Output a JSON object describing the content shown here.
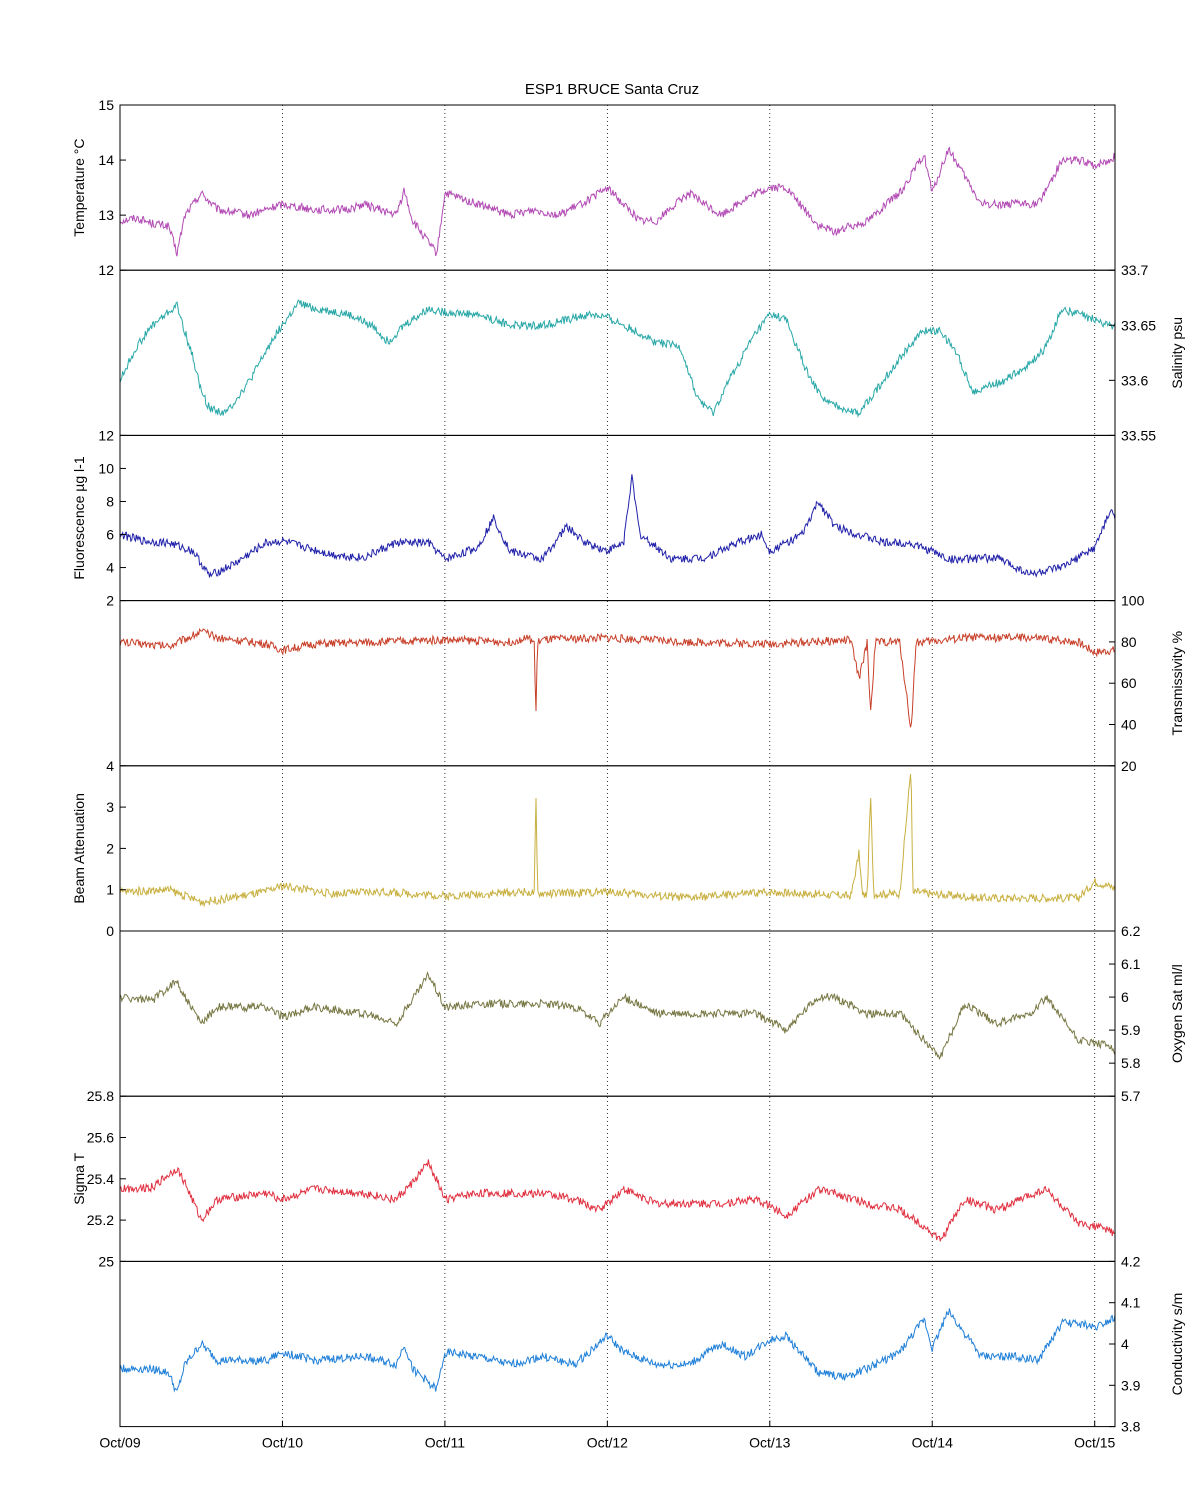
{
  "chart_data": {
    "type": "line",
    "title": "ESP1 BRUCE Santa Cruz",
    "x_ticks": [
      "Oct/09",
      "Oct/10",
      "Oct/11",
      "Oct/12",
      "Oct/13",
      "Oct/14",
      "Oct/15"
    ],
    "xlim": [
      "Oct/09",
      "Oct/15 03:00"
    ],
    "grid": "vertical dotted",
    "panels": [
      {
        "ylabel": "Temperature °C",
        "axis_side": "left",
        "ylim": [
          12,
          15
        ],
        "yticks": [
          "12",
          "13",
          "14",
          "15"
        ],
        "color": "#b24bb4",
        "series": {
          "x_days": [
            0.0,
            0.1,
            0.2,
            0.3,
            0.35,
            0.4,
            0.5,
            0.6,
            0.8,
            1.0,
            1.2,
            1.4,
            1.5,
            1.7,
            1.75,
            1.8,
            1.95,
            2.0,
            2.2,
            2.4,
            2.55,
            2.7,
            2.9,
            3.0,
            3.1,
            3.2,
            3.3,
            3.5,
            3.7,
            3.85,
            4.0,
            4.1,
            4.3,
            4.4,
            4.6,
            4.8,
            4.95,
            5.0,
            5.1,
            5.3,
            5.5,
            5.65,
            5.8,
            5.9,
            6.0,
            6.1,
            6.2
          ],
          "values": [
            12.9,
            12.95,
            12.85,
            12.8,
            12.3,
            13.0,
            13.4,
            13.1,
            13.0,
            13.2,
            13.1,
            13.1,
            13.2,
            13.0,
            13.45,
            12.9,
            12.3,
            13.4,
            13.2,
            13.0,
            13.1,
            13.0,
            13.3,
            13.5,
            13.2,
            12.9,
            12.9,
            13.4,
            13.0,
            13.3,
            13.5,
            13.5,
            12.8,
            12.7,
            12.9,
            13.4,
            14.1,
            13.4,
            14.2,
            13.2,
            13.2,
            13.2,
            14.0,
            14.0,
            13.9,
            14.0,
            14.3
          ]
        }
      },
      {
        "ylabel": "Salinity psu",
        "axis_side": "right",
        "ylim": [
          33.55,
          33.7
        ],
        "yticks": [
          "33.55",
          "33.6",
          "33.65",
          "33.7"
        ],
        "color": "#2aa8a8",
        "series": {
          "x_days": [
            0.0,
            0.1,
            0.2,
            0.35,
            0.45,
            0.5,
            0.55,
            0.65,
            0.8,
            0.95,
            1.1,
            1.2,
            1.4,
            1.55,
            1.65,
            1.75,
            1.9,
            2.0,
            2.2,
            2.4,
            2.6,
            2.75,
            2.9,
            3.0,
            3.1,
            3.3,
            3.45,
            3.55,
            3.65,
            3.75,
            3.9,
            4.0,
            4.1,
            4.25,
            4.35,
            4.55,
            4.7,
            4.85,
            4.95,
            5.05,
            5.15,
            5.25,
            5.45,
            5.6,
            5.7,
            5.8,
            6.0,
            6.1,
            6.2
          ],
          "values": [
            33.6,
            33.63,
            33.65,
            33.668,
            33.62,
            33.59,
            33.575,
            33.57,
            33.6,
            33.64,
            33.67,
            33.665,
            33.66,
            33.65,
            33.635,
            33.65,
            33.665,
            33.662,
            33.66,
            33.65,
            33.65,
            33.655,
            33.66,
            33.657,
            33.65,
            33.635,
            33.63,
            33.585,
            33.57,
            33.6,
            33.64,
            33.66,
            33.655,
            33.6,
            33.58,
            33.57,
            33.6,
            33.63,
            33.645,
            33.645,
            33.625,
            33.59,
            33.6,
            33.615,
            33.63,
            33.665,
            33.655,
            33.65,
            33.65
          ]
        }
      },
      {
        "ylabel": "Fluorescence µg l-1",
        "axis_side": "left",
        "ylim": [
          2,
          12
        ],
        "yticks": [
          "2",
          "4",
          "6",
          "8",
          "10",
          "12"
        ],
        "color": "#2222aa",
        "series": {
          "x_days": [
            0.0,
            0.15,
            0.3,
            0.45,
            0.55,
            0.7,
            0.9,
            1.0,
            1.3,
            1.5,
            1.7,
            1.9,
            2.0,
            2.2,
            2.3,
            2.4,
            2.6,
            2.75,
            2.85,
            3.0,
            3.1,
            3.15,
            3.2,
            3.4,
            3.6,
            3.8,
            3.95,
            4.0,
            4.2,
            4.3,
            4.4,
            4.55,
            4.7,
            4.85,
            5.0,
            5.1,
            5.2,
            5.4,
            5.6,
            5.8,
            6.0,
            6.1,
            6.2
          ],
          "values": [
            6.0,
            5.6,
            5.5,
            5.0,
            3.5,
            4.2,
            5.5,
            5.6,
            4.8,
            4.6,
            5.5,
            5.5,
            4.5,
            5.2,
            7.0,
            5.0,
            4.5,
            6.5,
            5.6,
            5.0,
            5.5,
            9.5,
            6.0,
            4.5,
            4.6,
            5.5,
            6.0,
            5.0,
            6.0,
            8.0,
            6.5,
            6.0,
            5.5,
            5.5,
            5.0,
            4.5,
            4.5,
            4.6,
            3.6,
            4.0,
            5.2,
            7.5,
            5.0
          ]
        }
      },
      {
        "ylabel": "Transmissivity %",
        "axis_side": "right",
        "ylim": [
          20,
          100
        ],
        "yticks": [
          "20",
          "40",
          "60",
          "80",
          "100"
        ],
        "color": "#c8402a",
        "series": {
          "x_days": [
            0.0,
            0.3,
            0.5,
            0.6,
            0.9,
            1.0,
            1.2,
            1.6,
            2.0,
            2.4,
            2.5,
            2.55,
            2.56,
            2.57,
            2.6,
            3.0,
            3.5,
            4.0,
            4.5,
            4.5,
            4.55,
            4.6,
            4.62,
            4.65,
            4.8,
            4.87,
            4.9,
            4.95,
            5.2,
            5.6,
            5.9,
            6.0,
            6.2
          ],
          "values": [
            80,
            78,
            85,
            82,
            79,
            76,
            79,
            80,
            81,
            80,
            82,
            80,
            43,
            80,
            81,
            82,
            80,
            79,
            81,
            80,
            62,
            80,
            45,
            80,
            80,
            37,
            80,
            80,
            82,
            82,
            80,
            75,
            77
          ]
        }
      },
      {
        "ylabel": "Beam Attenuation",
        "axis_side": "left",
        "ylim": [
          0,
          4
        ],
        "yticks": [
          "0",
          "1",
          "2",
          "3",
          "4"
        ],
        "color": "#c8b040",
        "series": {
          "x_days": [
            0.0,
            0.3,
            0.5,
            0.6,
            0.9,
            1.0,
            1.3,
            1.6,
            2.0,
            2.5,
            2.55,
            2.56,
            2.57,
            2.6,
            3.0,
            3.5,
            4.0,
            4.5,
            4.55,
            4.57,
            4.6,
            4.62,
            4.64,
            4.8,
            4.87,
            4.88,
            4.9,
            5.0,
            5.3,
            5.7,
            5.9,
            6.0,
            6.2
          ],
          "values": [
            0.95,
            1.0,
            0.7,
            0.75,
            0.95,
            1.1,
            0.9,
            0.95,
            0.85,
            0.95,
            0.9,
            3.4,
            0.9,
            0.9,
            0.95,
            0.8,
            0.95,
            0.85,
            1.9,
            0.85,
            0.9,
            3.3,
            0.9,
            0.9,
            4.0,
            0.9,
            0.95,
            0.9,
            0.8,
            0.8,
            0.8,
            1.2,
            0.95
          ]
        }
      },
      {
        "ylabel": "Oxygen Sat ml/l",
        "axis_side": "right",
        "ylim": [
          5.7,
          6.2
        ],
        "yticks": [
          "5.7",
          "5.8",
          "5.9",
          "6",
          "6.1",
          "6.2"
        ],
        "color": "#787845",
        "series": {
          "x_days": [
            0.0,
            0.2,
            0.35,
            0.4,
            0.5,
            0.6,
            0.9,
            1.0,
            1.2,
            1.5,
            1.7,
            1.85,
            1.9,
            2.0,
            2.2,
            2.4,
            2.6,
            2.8,
            2.95,
            3.1,
            3.3,
            3.5,
            3.7,
            3.9,
            4.0,
            4.1,
            4.3,
            4.4,
            4.6,
            4.8,
            4.95,
            5.05,
            5.2,
            5.4,
            5.6,
            5.7,
            5.9,
            6.0,
            6.1,
            6.2
          ],
          "values": [
            6.0,
            5.99,
            6.05,
            6.0,
            5.92,
            5.97,
            5.97,
            5.94,
            5.97,
            5.95,
            5.92,
            6.03,
            6.07,
            5.97,
            5.98,
            5.98,
            5.98,
            5.97,
            5.92,
            6.0,
            5.95,
            5.95,
            5.95,
            5.95,
            5.93,
            5.9,
            6.0,
            6.0,
            5.95,
            5.95,
            5.87,
            5.82,
            5.98,
            5.92,
            5.95,
            6.0,
            5.87,
            5.86,
            5.85,
            5.8
          ]
        }
      },
      {
        "ylabel": "Sigma T",
        "axis_side": "left",
        "ylim": [
          25,
          25.8
        ],
        "yticks": [
          "25",
          "25.2",
          "25.4",
          "25.6",
          "25.8"
        ],
        "color": "#e03040",
        "series": {
          "x_days": [
            0.0,
            0.2,
            0.35,
            0.4,
            0.5,
            0.6,
            0.9,
            1.0,
            1.2,
            1.5,
            1.7,
            1.8,
            1.9,
            2.0,
            2.2,
            2.4,
            2.6,
            2.8,
            2.95,
            3.1,
            3.3,
            3.5,
            3.7,
            3.9,
            4.0,
            4.1,
            4.3,
            4.4,
            4.6,
            4.8,
            4.95,
            5.05,
            5.2,
            5.4,
            5.6,
            5.7,
            5.9,
            6.0,
            6.1,
            6.2
          ],
          "values": [
            25.35,
            25.36,
            25.45,
            25.38,
            25.2,
            25.3,
            25.33,
            25.3,
            25.35,
            25.33,
            25.3,
            25.38,
            25.48,
            25.3,
            25.33,
            25.33,
            25.33,
            25.3,
            25.25,
            25.35,
            25.28,
            25.28,
            25.28,
            25.3,
            25.27,
            25.22,
            25.35,
            25.33,
            25.28,
            25.25,
            25.17,
            25.1,
            25.3,
            25.25,
            25.32,
            25.35,
            25.18,
            25.17,
            25.15,
            25.05
          ]
        }
      },
      {
        "ylabel": "Conductivity s/m",
        "axis_side": "right",
        "ylim": [
          3.8,
          4.2
        ],
        "yticks": [
          "3.8",
          "3.9",
          "4",
          "4.1",
          "4.2"
        ],
        "color": "#2080d8",
        "series": {
          "x_days": [
            0.0,
            0.2,
            0.3,
            0.35,
            0.4,
            0.5,
            0.6,
            0.9,
            1.0,
            1.2,
            1.5,
            1.7,
            1.75,
            1.8,
            1.95,
            2.0,
            2.2,
            2.4,
            2.6,
            2.8,
            3.0,
            3.1,
            3.3,
            3.5,
            3.7,
            3.85,
            4.0,
            4.1,
            4.3,
            4.45,
            4.6,
            4.8,
            4.95,
            5.0,
            5.1,
            5.3,
            5.5,
            5.65,
            5.8,
            5.9,
            6.0,
            6.1,
            6.2
          ],
          "values": [
            3.94,
            3.94,
            3.93,
            3.88,
            3.95,
            4.0,
            3.96,
            3.96,
            3.98,
            3.96,
            3.97,
            3.95,
            4.0,
            3.94,
            3.89,
            3.98,
            3.97,
            3.95,
            3.97,
            3.95,
            4.02,
            3.98,
            3.95,
            3.95,
            4.0,
            3.97,
            4.01,
            4.02,
            3.93,
            3.92,
            3.94,
            3.98,
            4.06,
            3.99,
            4.08,
            3.97,
            3.97,
            3.96,
            4.05,
            4.05,
            4.04,
            4.06,
            4.09
          ]
        }
      }
    ]
  }
}
